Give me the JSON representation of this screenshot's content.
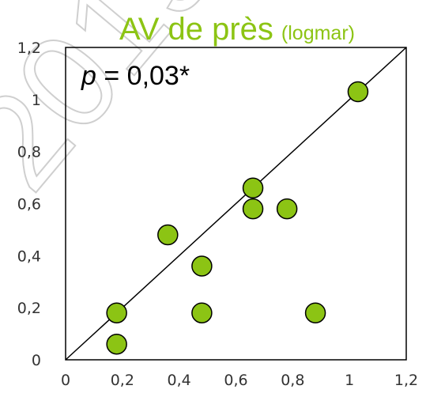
{
  "watermark_text": "2019",
  "chart_data": {
    "type": "scatter",
    "title": "AV de près",
    "title_unit": "(logmar)",
    "annotation": {
      "italic": "p",
      "rest": " = 0,03*"
    },
    "xlim": [
      0,
      1.2
    ],
    "ylim": [
      0,
      1.2
    ],
    "x_ticks": [
      "0",
      "0,2",
      "0,4",
      "0,6",
      "0,8",
      "1",
      "1,2"
    ],
    "y_ticks": [
      "0",
      "0,2",
      "0,4",
      "0,6",
      "0,8",
      "1",
      "1,2"
    ],
    "identity_line": true,
    "grid": false,
    "point_color": "#8cc414",
    "points": [
      {
        "x": 0.18,
        "y": 0.06
      },
      {
        "x": 0.18,
        "y": 0.18
      },
      {
        "x": 0.36,
        "y": 0.48
      },
      {
        "x": 0.48,
        "y": 0.36
      },
      {
        "x": 0.48,
        "y": 0.18
      },
      {
        "x": 0.66,
        "y": 0.66
      },
      {
        "x": 0.66,
        "y": 0.58
      },
      {
        "x": 0.78,
        "y": 0.58
      },
      {
        "x": 0.88,
        "y": 0.18
      },
      {
        "x": 1.03,
        "y": 1.03
      }
    ]
  }
}
